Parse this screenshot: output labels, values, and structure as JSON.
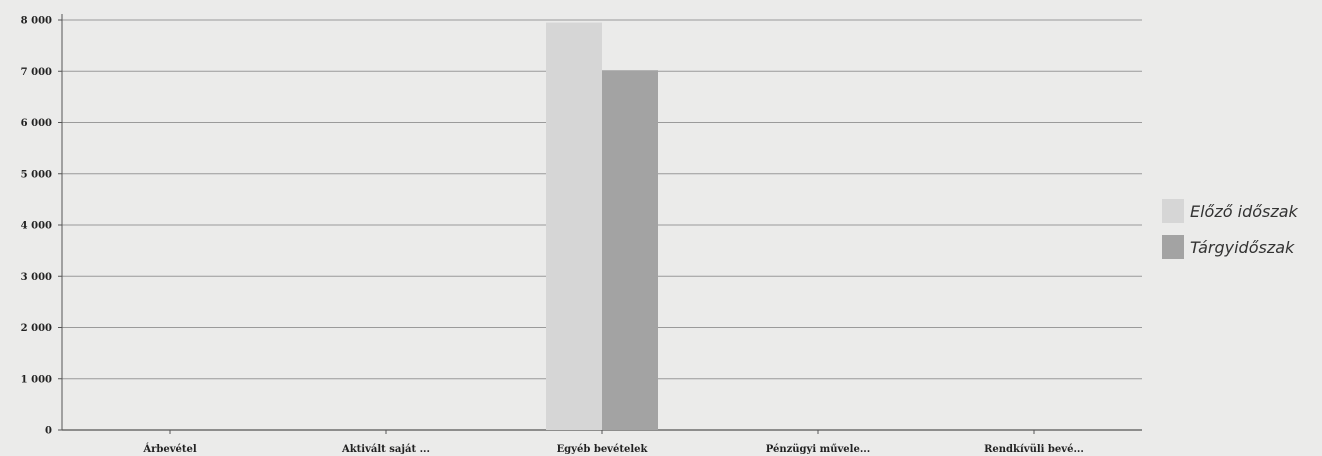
{
  "chart_data": {
    "type": "bar",
    "title": "",
    "xlabel": "",
    "ylabel": "",
    "categories": [
      "Árbevétel",
      "Aktivált saját ...",
      "Egyéb bevételek",
      "Pénzügyi művele...",
      "Rendkívüli bevé..."
    ],
    "series": [
      {
        "name": "Előző időszak",
        "values": [
          0,
          0,
          7950,
          0,
          0
        ],
        "color": "#d6d6d6"
      },
      {
        "name": "Tárgyidőszak",
        "values": [
          0,
          0,
          7020,
          0,
          0
        ],
        "color": "#a3a3a3"
      }
    ],
    "ylim": [
      0,
      8000
    ],
    "yticks": [
      "0",
      "1 000",
      "2 000",
      "3 000",
      "4 000",
      "5 000",
      "6 000",
      "7 000",
      "8 000"
    ],
    "grid": true,
    "legend_position": "right"
  }
}
